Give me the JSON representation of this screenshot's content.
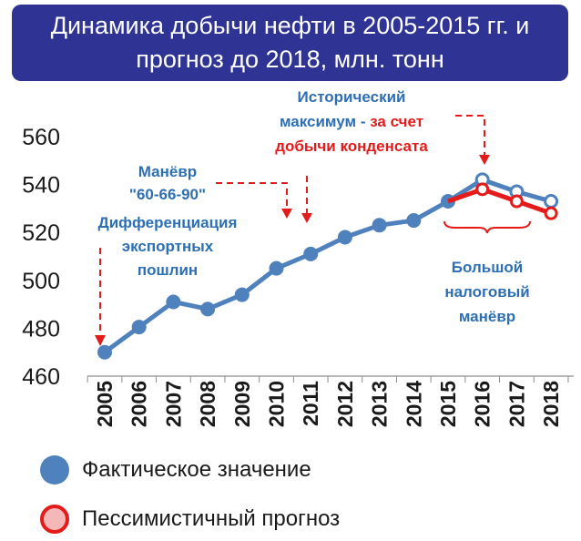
{
  "title": {
    "line1": "Динамика добычи нефти в 2005-2015 гг. и",
    "line2": "прогноз до 2018, млн. тонн"
  },
  "colors": {
    "title_bg": "#2f3393",
    "actual": "#4f81bd",
    "pessimistic": "#e31b1b",
    "pessimistic_fill": "#f4b8b8",
    "annotation_blue": "#2e6fb3",
    "annotation_red": "#e31b1b",
    "axis_text": "#1a1a1a"
  },
  "annotations": [
    {
      "lines": [
        "Исторический",
        "максимум - за счет",
        "добычи конденсата"
      ]
    },
    {
      "lines": [
        "Манёвр",
        "\"60-66-90\""
      ]
    },
    {
      "lines": [
        "Дифференциация",
        "экспортных",
        "пошлин"
      ]
    },
    {
      "lines": [
        "Большой",
        "налоговый",
        "манёвр"
      ]
    }
  ],
  "annotation_parts": {
    "historic_line1": "Исторический",
    "historic_line2_blue": "максимум - ",
    "historic_line2_red": "за счет",
    "historic_line3": "добычи конденсата",
    "maneuver_line1": "Манёвр",
    "maneuver_line2": "\"60-66-90\"",
    "diff_line1": "Дифференциация",
    "diff_line2": "экспортных",
    "diff_line3": "пошлин",
    "big_line1": "Большой",
    "big_line2": "налоговый",
    "big_line3": "манёвр"
  },
  "legend": {
    "actual_label": "Фактическое значение",
    "pessimistic_label": "Пессимистичный прогноз"
  },
  "chart_data": {
    "type": "line",
    "x": [
      "2005",
      "2006",
      "2007",
      "2008",
      "2009",
      "2010",
      "2011",
      "2012",
      "2013",
      "2014",
      "2015",
      "2016",
      "2017",
      "2018"
    ],
    "ylim": [
      460,
      560
    ],
    "yticks": [
      460,
      480,
      500,
      520,
      540,
      560
    ],
    "grid": false,
    "series": [
      {
        "name": "Фактическое значение",
        "style": "actual",
        "x": [
          "2005",
          "2006",
          "2007",
          "2008",
          "2009",
          "2010",
          "2011",
          "2012",
          "2013",
          "2014",
          "2015"
        ],
        "values": [
          470,
          480.5,
          491,
          488,
          494,
          505,
          511,
          518,
          523,
          525,
          533
        ]
      },
      {
        "name": "",
        "style": "forecast",
        "x": [
          "2015",
          "2016",
          "2017",
          "2018"
        ],
        "values": [
          533,
          542,
          537,
          533
        ]
      },
      {
        "name": "Пессимистичный прогноз",
        "style": "pessimistic",
        "x": [
          "2015",
          "2016",
          "2017",
          "2018"
        ],
        "values": [
          533,
          538,
          533,
          528
        ]
      }
    ]
  }
}
